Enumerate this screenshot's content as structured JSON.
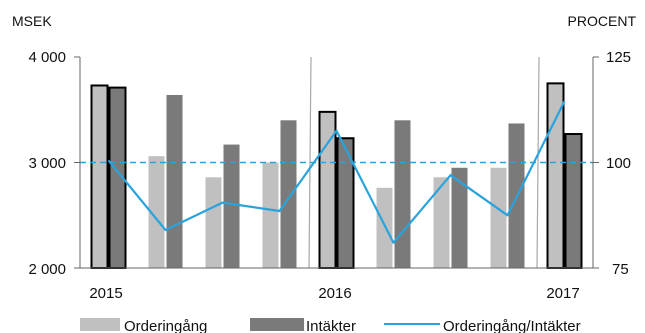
{
  "chart_data": {
    "type": "bar",
    "left_unit": "MSEK",
    "right_unit": "PROCENT",
    "left_ticks": [
      "4 000",
      "3 000",
      "2 000"
    ],
    "left_tick_values": [
      4000,
      3000,
      2000
    ],
    "right_ticks": [
      "125",
      "100",
      "75"
    ],
    "right_tick_values": [
      125,
      100,
      75
    ],
    "ylim_left": [
      2000,
      4000
    ],
    "ylim_right": [
      75,
      125
    ],
    "year_labels": [
      "2015",
      "2016",
      "2017"
    ],
    "year_label_at_period": [
      0,
      4,
      8
    ],
    "separator_after_period": [
      3,
      7
    ],
    "reference_line_value": 100,
    "periods": 9,
    "colors": {
      "orders": "#c0c0c0",
      "revenue": "#7a7a7a",
      "ratio": "#29a3dc",
      "annual_outline": "#000000"
    },
    "series": [
      {
        "name": "Orderingång",
        "values": [
          3730,
          3060,
          2860,
          3000,
          3480,
          2760,
          2860,
          2950,
          3750
        ]
      },
      {
        "name": "Intäkter",
        "values": [
          3710,
          3640,
          3170,
          3400,
          3230,
          3400,
          2950,
          3370,
          3270
        ]
      },
      {
        "name": "Orderingång/Intäkter",
        "axis": "right",
        "type": "line",
        "values": [
          100.5,
          84,
          90.5,
          88.5,
          107.5,
          81,
          97,
          87.5,
          114.5
        ]
      }
    ],
    "annual_periods": [
      0,
      4,
      8
    ]
  }
}
